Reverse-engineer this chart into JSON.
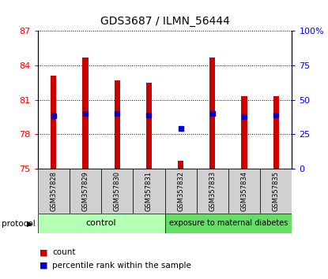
{
  "title": "GDS3687 / ILMN_56444",
  "samples": [
    "GSM357828",
    "GSM357829",
    "GSM357830",
    "GSM357831",
    "GSM357832",
    "GSM357833",
    "GSM357834",
    "GSM357835"
  ],
  "bar_tops": [
    83.1,
    84.7,
    82.7,
    82.5,
    75.7,
    84.7,
    81.3,
    81.3
  ],
  "blue_markers": [
    79.6,
    79.8,
    79.8,
    79.7,
    78.5,
    79.8,
    79.5,
    79.7
  ],
  "bar_base": 75.0,
  "ylim_left": [
    75,
    87
  ],
  "ylim_right": [
    0,
    100
  ],
  "yticks_left": [
    75,
    78,
    81,
    84,
    87
  ],
  "yticks_right": [
    0,
    25,
    50,
    75,
    100
  ],
  "ytick_labels_right": [
    "0",
    "25",
    "50",
    "75",
    "100%"
  ],
  "bar_color": "#cc0000",
  "blue_color": "#0000cc",
  "control_color": "#b3ffb3",
  "diabetes_color": "#66dd66",
  "label_bg_color": "#d0d0d0",
  "control_label": "control",
  "diabetes_label": "exposure to maternal diabetes",
  "protocol_label": "protocol",
  "legend_count": "count",
  "legend_pct": "percentile rank within the sample",
  "n_control": 4,
  "n_diabetes": 4,
  "bar_width": 0.18
}
